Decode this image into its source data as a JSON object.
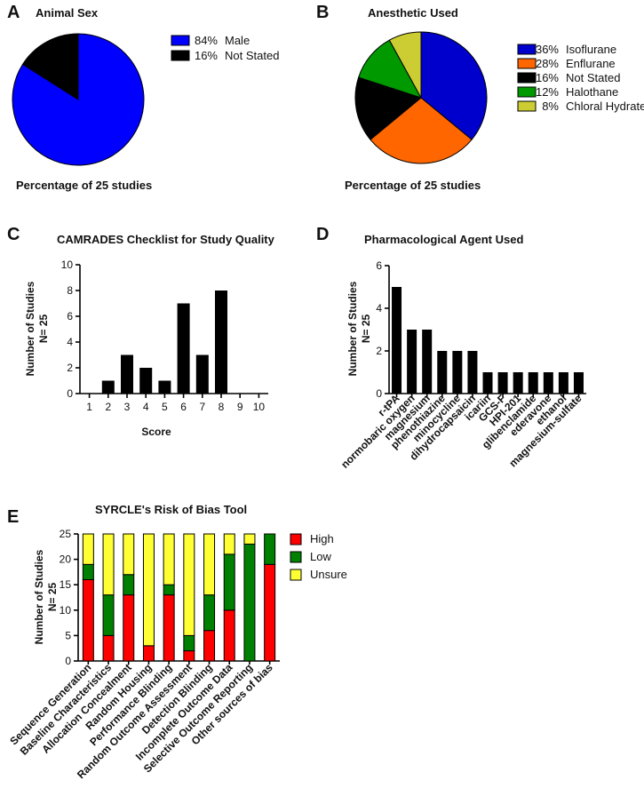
{
  "panels": {
    "A": "A",
    "B": "B",
    "C": "C",
    "D": "D",
    "E": "E"
  },
  "chart_data": [
    {
      "id": "A",
      "type": "pie",
      "title": "Animal Sex",
      "caption": "Percentage of 25 studies",
      "slices": [
        {
          "label": "Male",
          "pct_label": "84%",
          "value": 84,
          "color": "#0000ff"
        },
        {
          "label": "Not Stated",
          "pct_label": "16%",
          "value": 16,
          "color": "#000000"
        }
      ]
    },
    {
      "id": "B",
      "type": "pie",
      "title": "Anesthetic Used",
      "caption": "Percentage of 25 studies",
      "slices": [
        {
          "label": "Isoflurane",
          "pct_label": "36%",
          "value": 36,
          "color": "#0000cc"
        },
        {
          "label": "Enflurane",
          "pct_label": "28%",
          "value": 28,
          "color": "#ff6600"
        },
        {
          "label": "Not Stated",
          "pct_label": "16%",
          "value": 16,
          "color": "#000000"
        },
        {
          "label": "Halothane",
          "pct_label": "12%",
          "value": 12,
          "color": "#009900"
        },
        {
          "label": "Chloral Hydrate",
          "pct_label": "8%",
          "value": 8,
          "color": "#cccc33"
        }
      ]
    },
    {
      "id": "C",
      "type": "bar",
      "title": "CAMRADES Checklist for Study Quality",
      "xlabel": "Score",
      "ylabel_lines": [
        "Number of Studies",
        "N= 25"
      ],
      "categories": [
        "1",
        "2",
        "3",
        "4",
        "5",
        "6",
        "7",
        "8",
        "9",
        "10"
      ],
      "values": [
        0,
        1,
        3,
        2,
        1,
        7,
        3,
        8,
        0,
        0
      ],
      "ylim": [
        0,
        10
      ],
      "yticks": [
        0,
        2,
        4,
        6,
        8,
        10
      ]
    },
    {
      "id": "D",
      "type": "bar",
      "title": "Pharmacological Agent Used",
      "ylabel_lines": [
        "Number of Studies",
        "N= 25"
      ],
      "categories": [
        "r-tPA",
        "normobaric oxygen",
        "magnesium",
        "phenothiazine",
        "minocycline",
        "dihydrocapsaicin",
        "icariin",
        "GCS-F",
        "HPI-201",
        "glibenclamide",
        "ederavone",
        "ethanol",
        "magnesium-sulfate"
      ],
      "values": [
        5,
        3,
        3,
        2,
        2,
        2,
        1,
        1,
        1,
        1,
        1,
        1,
        1
      ],
      "ylim": [
        0,
        6
      ],
      "yticks": [
        0,
        2,
        4,
        6
      ]
    },
    {
      "id": "E",
      "type": "bar",
      "stacked": true,
      "title": "SYRCLE's Risk of Bias Tool",
      "ylabel_lines": [
        "Number of Studies",
        "N= 25"
      ],
      "categories": [
        "Sequence Generation",
        "Baseline Characteristics",
        "Allocation Concealment",
        "Random Housing",
        "Performance Blinding",
        "Random Outcome Assessment",
        "Detection Blinding",
        "Incomplete Outcome Data",
        "Selective Outcome Reporting",
        "Other sources of bias"
      ],
      "series": [
        {
          "name": "High",
          "color": "#ff0000",
          "values": [
            16,
            5,
            13,
            3,
            13,
            2,
            6,
            10,
            0,
            19
          ]
        },
        {
          "name": "Low",
          "color": "#008000",
          "values": [
            3,
            8,
            4,
            0,
            2,
            3,
            7,
            11,
            23,
            6
          ]
        },
        {
          "name": "Unsure",
          "color": "#ffff33",
          "values": [
            6,
            12,
            8,
            22,
            10,
            20,
            12,
            4,
            2,
            0
          ]
        }
      ],
      "ylim": [
        0,
        25
      ],
      "yticks": [
        0,
        5,
        10,
        15,
        20,
        25
      ]
    }
  ]
}
